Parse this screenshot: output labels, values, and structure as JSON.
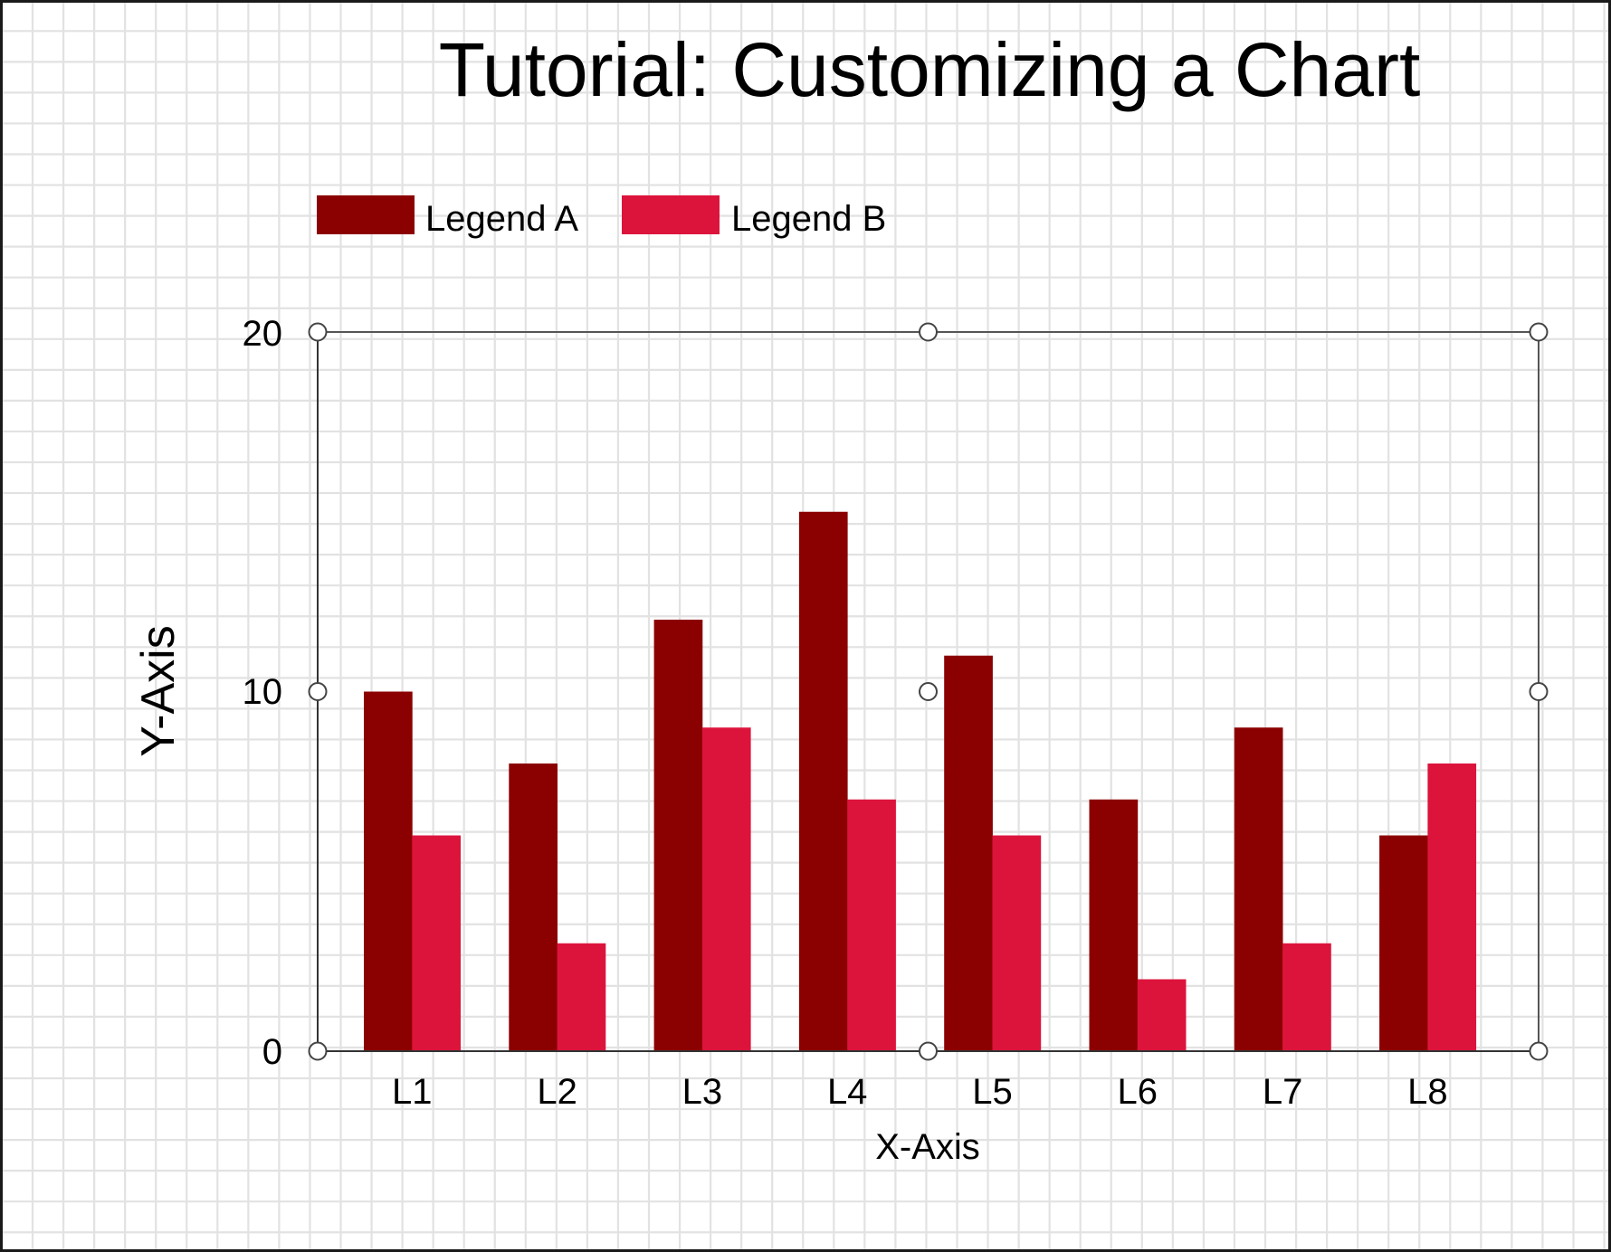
{
  "chart_data": {
    "type": "bar",
    "title": "Tutorial: Customizing a Chart",
    "xlabel": "X-Axis",
    "ylabel": "Y-Axis",
    "categories": [
      "L1",
      "L2",
      "L3",
      "L4",
      "L5",
      "L6",
      "L7",
      "L8"
    ],
    "series": [
      {
        "name": "Legend A",
        "color": "#8B0000",
        "values": [
          10,
          8,
          12,
          15,
          11,
          7,
          9,
          6
        ]
      },
      {
        "name": "Legend B",
        "color": "#DC143C",
        "values": [
          6,
          3,
          9,
          7,
          6,
          2,
          3,
          8
        ]
      }
    ],
    "ylim": [
      0,
      20
    ],
    "yticks": [
      "0",
      "10",
      "20"
    ],
    "grid": false,
    "legend_position": "top-left",
    "background": "graph-paper grid"
  },
  "colors": {
    "series_a": "#8B0000",
    "series_b": "#DC143C",
    "axis": "#555555",
    "grid": "#e2e2e2"
  }
}
